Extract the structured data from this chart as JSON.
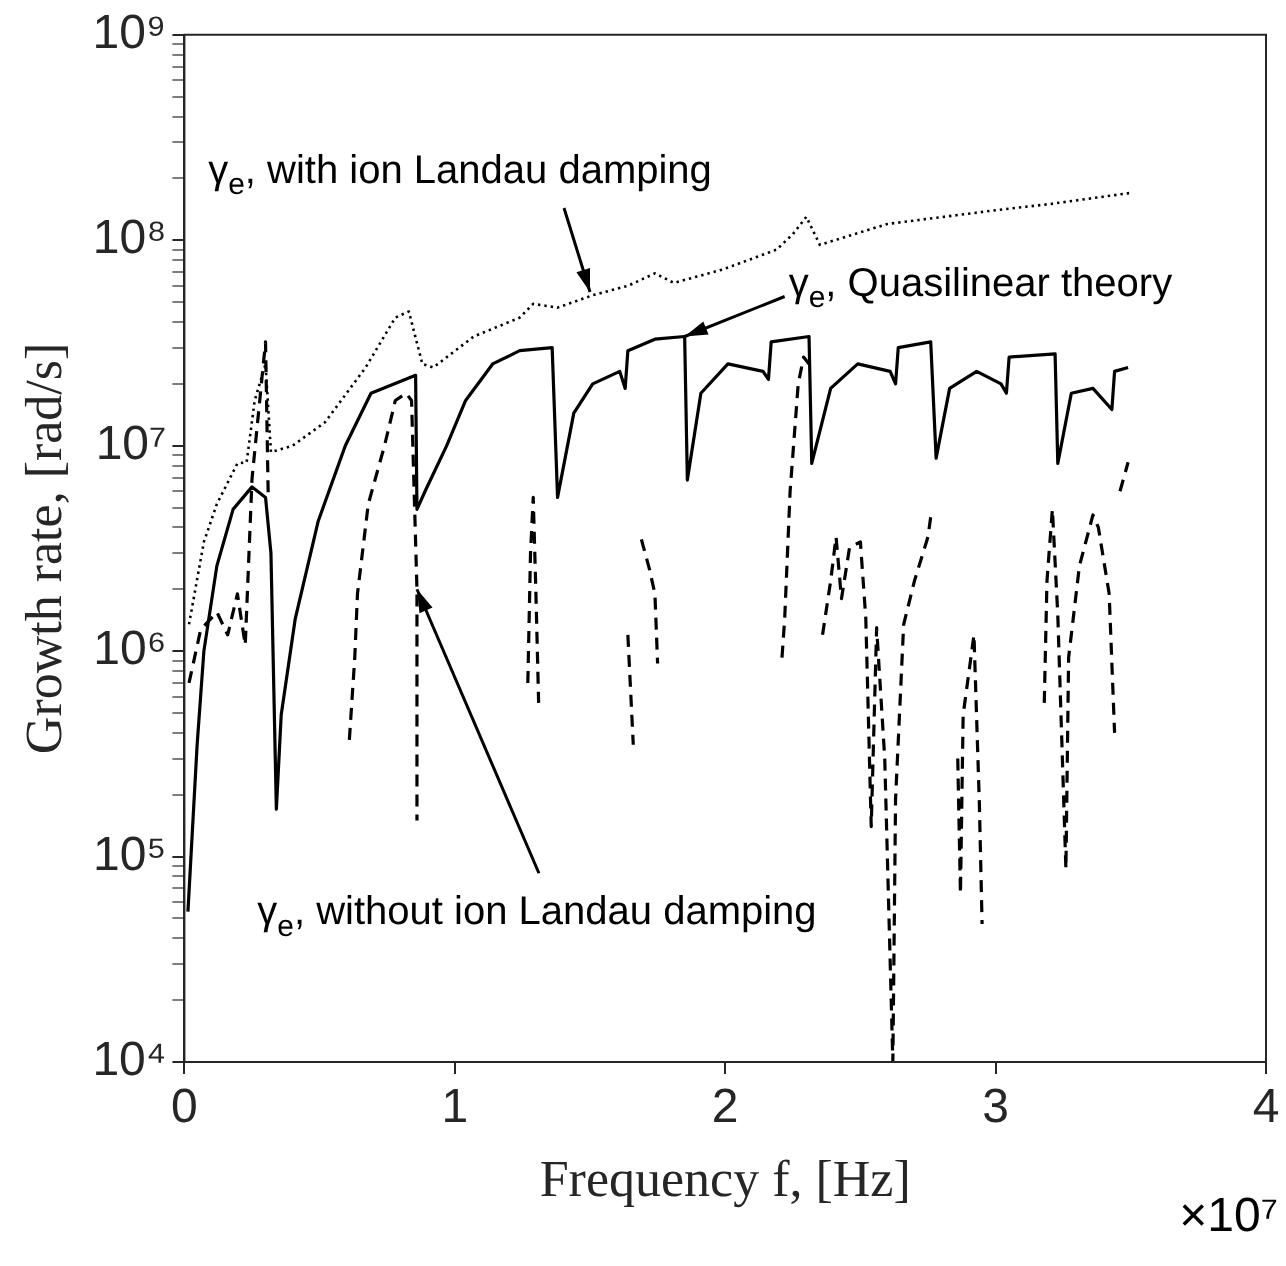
{
  "chart_data": {
    "type": "line",
    "xlabel": "Frequency f, [Hz]",
    "ylabel": "Growth rate, [rad/s]",
    "log": "y",
    "marker": "none",
    "xlim": [
      0,
      4
    ],
    "xticks": [
      0,
      1,
      2,
      3,
      4
    ],
    "ylim": [
      10000.0,
      1000000000.0
    ],
    "yticks": [
      {
        "value": 10000.0,
        "label": "10⁴"
      },
      {
        "value": 20000.0,
        "label": null
      },
      {
        "value": 30000.0,
        "label": null
      },
      {
        "value": 40000.0,
        "label": null
      },
      {
        "value": 50000.0,
        "label": null
      },
      {
        "value": 60000.0,
        "label": null
      },
      {
        "value": 70000.0,
        "label": null
      },
      {
        "value": 80000.0,
        "label": null
      },
      {
        "value": 90000.0,
        "label": null
      },
      {
        "value": 100000.0,
        "label": "10⁵"
      },
      {
        "value": 200000.0,
        "label": null
      },
      {
        "value": 300000.0,
        "label": null
      },
      {
        "value": 400000.0,
        "label": null
      },
      {
        "value": 500000.0,
        "label": null
      },
      {
        "value": 600000.0,
        "label": null
      },
      {
        "value": 700000.0,
        "label": null
      },
      {
        "value": 800000.0,
        "label": null
      },
      {
        "value": 900000.0,
        "label": null
      },
      {
        "value": 1000000.0,
        "label": "10⁶"
      },
      {
        "value": 2000000.0,
        "label": null
      },
      {
        "value": 3000000.0,
        "label": null
      },
      {
        "value": 4000000.0,
        "label": null
      },
      {
        "value": 5000000.0,
        "label": null
      },
      {
        "value": 6000000.0,
        "label": null
      },
      {
        "value": 7000000.0,
        "label": null
      },
      {
        "value": 8000000.0,
        "label": null
      },
      {
        "value": 9000000.0,
        "label": null
      },
      {
        "value": 10000000.0,
        "label": "10⁷"
      },
      {
        "value": 20000000.0,
        "label": null
      },
      {
        "value": 30000000.0,
        "label": null
      },
      {
        "value": 40000000.0,
        "label": null
      },
      {
        "value": 50000000.0,
        "label": null
      },
      {
        "value": 60000000.0,
        "label": null
      },
      {
        "value": 70000000.0,
        "label": null
      },
      {
        "value": 80000000.0,
        "label": null
      },
      {
        "value": 90000000.0,
        "label": null
      },
      {
        "value": 100000000.0,
        "label": "10⁸"
      },
      {
        "value": 200000000.0,
        "label": null
      },
      {
        "value": 300000000.0,
        "label": null
      },
      {
        "value": 400000000.0,
        "label": null
      },
      {
        "value": 500000000.0,
        "label": null
      },
      {
        "value": 600000000.0,
        "label": null
      },
      {
        "value": 700000000.0,
        "label": null
      },
      {
        "value": 800000000.0,
        "label": null
      },
      {
        "value": 900000000.0,
        "label": null
      },
      {
        "value": 1000000000.0,
        "label": "10⁹"
      }
    ],
    "series": [
      {
        "color": "#000000",
        "line_style": "dotted",
        "x": [
          0.017,
          0.072,
          0.12,
          0.196,
          0.23,
          0.26,
          0.3,
          0.32,
          0.4,
          0.52,
          0.67,
          0.78,
          0.83,
          0.88,
          0.92,
          1.07,
          1.24,
          1.29,
          1.38,
          1.51,
          1.64,
          1.74,
          1.81,
          1.99,
          2.19,
          2.25,
          2.3,
          2.35,
          2.6,
          3.0,
          3.2,
          3.5
        ],
        "values": [
          1350000.0,
          3400000.0,
          5200000.0,
          8200000.0,
          8300000.0,
          16600000.0,
          25000000.0,
          9300000.0,
          10000000.0,
          13000000.0,
          24000000.0,
          42000000.0,
          45000000.0,
          25000000.0,
          24000000.0,
          34000000.0,
          42000000.0,
          49000000.0,
          47000000.0,
          54000000.0,
          60000000.0,
          69000000.0,
          62000000.0,
          72000000.0,
          90000000.0,
          107000000.0,
          130000000.0,
          95000000.0,
          120000000.0,
          140000000.0,
          150000000.0,
          170000000.0
        ]
      },
      {
        "color": "#000000",
        "line_style": "solid",
        "x": [
          0.013,
          0.047,
          0.072,
          0.12,
          0.18,
          0.25,
          0.3,
          0.32,
          0.34,
          0.358,
          0.41,
          0.495,
          0.595,
          0.69,
          0.855,
          0.86,
          0.89,
          0.97,
          1.04,
          1.14,
          1.24,
          1.36,
          1.38,
          1.44,
          1.51,
          1.61,
          1.63,
          1.64,
          1.74,
          1.85,
          1.86,
          1.91,
          2.01,
          2.14,
          2.16,
          2.17,
          2.31,
          2.32,
          2.39,
          2.49,
          2.61,
          2.63,
          2.64,
          2.76,
          2.78,
          2.83,
          2.93,
          3.02,
          3.04,
          3.05,
          3.22,
          3.23,
          3.28,
          3.36,
          3.43,
          3.44,
          3.49
        ],
        "values": [
          54000.0,
          350000.0,
          1000000.0,
          2600000.0,
          4900000.0,
          6300000.0,
          5600000.0,
          3000000.0,
          170000.0,
          490000.0,
          1440000.0,
          4300000.0,
          10000000.0,
          18000000.0,
          22000000.0,
          4900000.0,
          6000000.0,
          10000000.0,
          16600000.0,
          25000000.0,
          29000000.0,
          30000000.0,
          5600000.0,
          14400000.0,
          20000000.0,
          23000000.0,
          19000000.0,
          29000000.0,
          33000000.0,
          34000000.0,
          6800000.0,
          18000000.0,
          25000000.0,
          23000000.0,
          21000000.0,
          32000000.0,
          34000000.0,
          8200000.0,
          19000000.0,
          25000000.0,
          23000000.0,
          20000000.0,
          30000000.0,
          32000000.0,
          8700000.0,
          19000000.0,
          23000000.0,
          20000000.0,
          18000000.0,
          27000000.0,
          28000000.0,
          8200000.0,
          18000000.0,
          19000000.0,
          15000000.0,
          23000000.0,
          24000000.0
        ]
      },
      {
        "color": "#000000",
        "line_style": "dashed",
        "x": [
          0.017,
          0.06,
          0.12,
          0.16,
          0.196,
          0.225,
          0.25,
          0.3,
          0.31,
          0.35,
          0.61,
          0.63,
          0.64,
          0.68,
          0.74,
          0.78,
          0.82,
          0.84,
          0.86,
          0.86,
          1.0,
          1.27,
          1.28,
          1.29,
          1.3,
          1.31,
          1.5,
          1.64,
          1.66,
          1.67,
          1.69,
          1.72,
          1.74,
          1.75,
          2.0,
          2.21,
          2.22,
          2.24,
          2.27,
          2.29,
          2.31,
          2.33,
          2.36,
          2.39,
          2.41,
          2.43,
          2.46,
          2.5,
          2.52,
          2.54,
          2.56,
          2.59,
          2.62,
          2.63,
          2.66,
          2.7,
          2.75,
          2.76,
          2.8,
          2.86,
          2.87,
          2.88,
          2.92,
          2.94,
          2.95,
          3.0,
          3.18,
          3.19,
          3.21,
          3.23,
          3.26,
          3.27,
          3.31,
          3.36,
          3.38,
          3.42,
          3.44,
          3.45,
          3.46,
          3.49
        ],
        "values": [
          700000.0,
          1270000.0,
          1550000.0,
          1200000.0,
          1900000.0,
          1070000.0,
          6900000.0,
          32000000.0,
          5600000.0,
          null,
          370000.0,
          930000.0,
          1900000.0,
          5200000.0,
          10000000.0,
          16600000.0,
          18000000.0,
          16600000.0,
          2000000.0,
          150000.0,
          null,
          700000.0,
          3000000.0,
          5600000.0,
          1900000.0,
          560000.0,
          null,
          1200000.0,
          350000.0,
          null,
          3500000.0,
          2500000.0,
          1900000.0,
          870000.0,
          null,
          930000.0,
          1440000.0,
          6000000.0,
          20000000.0,
          27000000.0,
          25000000.0,
          null,
          1200000.0,
          2200000.0,
          3600000.0,
          1800000.0,
          3200000.0,
          3400000.0,
          1440000.0,
          140000.0,
          1300000.0,
          300000.0,
          10000.0,
          190000.0,
          1350000.0,
          2200000.0,
          3600000.0,
          4500000.0,
          null,
          300000.0,
          66000.0,
          490000.0,
          1200000.0,
          180000.0,
          47000.0,
          null,
          560000.0,
          2200000.0,
          4900000.0,
          1500000.0,
          87000.0,
          930000.0,
          2600000.0,
          4600000.0,
          4000000.0,
          1900000.0,
          400000.0,
          null,
          6000000.0,
          8300000.0
        ]
      }
    ],
    "annotations": [
      {
        "text": "γ$_{e}$, with ion Landau damping",
        "x": 1.5,
        "y": 56000000.0
      },
      {
        "text": "γ$_{e}$, Quasilinear theory",
        "x": 1.85,
        "y": 34000000.0
      },
      {
        "text": "γ$_{e}$, without ion Landau damping",
        "x": 0.86,
        "y": 2000000.0
      },
      "×10⁷"
    ]
  }
}
